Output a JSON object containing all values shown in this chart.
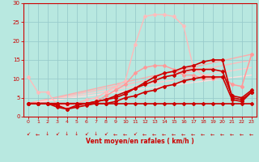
{
  "bg_color": "#b8e8e0",
  "grid_color": "#99cccc",
  "xlabel": "Vent moyen/en rafales ( km/h )",
  "xlabel_color": "#cc0000",
  "tick_color": "#cc0000",
  "arrow_color": "#cc0000",
  "xlim": [
    -0.5,
    23.5
  ],
  "ylim": [
    0,
    30
  ],
  "yticks": [
    0,
    5,
    10,
    15,
    20,
    25,
    30
  ],
  "xticks": [
    0,
    1,
    2,
    3,
    4,
    5,
    6,
    7,
    8,
    9,
    10,
    11,
    12,
    13,
    14,
    15,
    16,
    17,
    18,
    19,
    20,
    21,
    22,
    23
  ],
  "series": [
    {
      "comment": "light pink - high peaked line going up to 27",
      "x": [
        0,
        1,
        2,
        3,
        4,
        5,
        6,
        7,
        8,
        9,
        10,
        11,
        12,
        13,
        14,
        15,
        16,
        17,
        18,
        19,
        20,
        21,
        22,
        23
      ],
      "y": [
        10.5,
        6.5,
        6.5,
        3.0,
        3.0,
        3.5,
        4.5,
        5.0,
        6.5,
        8.0,
        9.5,
        19.0,
        26.5,
        27.0,
        27.0,
        26.5,
        24.0,
        13.0,
        11.0,
        10.5,
        10.5,
        8.5,
        8.0,
        16.5
      ],
      "color": "#ffbbbb",
      "lw": 1.0,
      "marker": "D",
      "ms": 2.0,
      "zorder": 2
    },
    {
      "comment": "medium pink line",
      "x": [
        0,
        1,
        2,
        3,
        4,
        5,
        6,
        7,
        8,
        9,
        10,
        11,
        12,
        13,
        14,
        15,
        16,
        17,
        18,
        19,
        20,
        21,
        22,
        23
      ],
      "y": [
        3.5,
        3.5,
        3.5,
        3.0,
        2.0,
        3.0,
        3.5,
        4.0,
        5.5,
        7.0,
        8.5,
        11.5,
        13.0,
        13.5,
        13.5,
        12.5,
        11.0,
        11.0,
        10.0,
        10.0,
        10.5,
        8.5,
        8.0,
        16.5
      ],
      "color": "#ff9999",
      "lw": 1.0,
      "marker": "D",
      "ms": 2.0,
      "zorder": 2
    },
    {
      "comment": "dark red flat then rising line",
      "x": [
        0,
        1,
        2,
        3,
        4,
        5,
        6,
        7,
        8,
        9,
        10,
        11,
        12,
        13,
        14,
        15,
        16,
        17,
        18,
        19,
        20,
        21,
        22,
        23
      ],
      "y": [
        3.5,
        3.5,
        3.5,
        3.5,
        3.5,
        3.5,
        3.5,
        3.5,
        3.5,
        3.5,
        3.5,
        3.5,
        3.5,
        3.5,
        3.5,
        3.5,
        3.5,
        3.5,
        3.5,
        3.5,
        3.5,
        3.5,
        3.5,
        3.5
      ],
      "color": "#cc0000",
      "lw": 1.2,
      "marker": "D",
      "ms": 2.0,
      "zorder": 4
    },
    {
      "comment": "dark red rising line 1",
      "x": [
        0,
        1,
        2,
        3,
        4,
        5,
        6,
        7,
        8,
        9,
        10,
        11,
        12,
        13,
        14,
        15,
        16,
        17,
        18,
        19,
        20,
        21,
        22,
        23
      ],
      "y": [
        3.5,
        3.5,
        3.5,
        2.5,
        2.0,
        2.5,
        3.0,
        3.5,
        3.5,
        4.0,
        5.0,
        5.5,
        6.5,
        7.0,
        8.0,
        8.5,
        9.5,
        10.0,
        10.5,
        10.5,
        10.5,
        4.5,
        4.0,
        6.5
      ],
      "color": "#cc0000",
      "lw": 1.2,
      "marker": "D",
      "ms": 2.0,
      "zorder": 4
    },
    {
      "comment": "dark red rising line 2",
      "x": [
        0,
        1,
        2,
        3,
        4,
        5,
        6,
        7,
        8,
        9,
        10,
        11,
        12,
        13,
        14,
        15,
        16,
        17,
        18,
        19,
        20,
        21,
        22,
        23
      ],
      "y": [
        3.5,
        3.5,
        3.5,
        3.5,
        3.5,
        3.5,
        3.5,
        4.0,
        4.5,
        5.5,
        6.5,
        7.5,
        8.5,
        9.5,
        10.5,
        11.0,
        12.0,
        12.5,
        12.5,
        12.5,
        12.0,
        5.5,
        5.0,
        7.0
      ],
      "color": "#cc0000",
      "lw": 1.2,
      "marker": "D",
      "ms": 2.0,
      "zorder": 4
    },
    {
      "comment": "dark red medium rise",
      "x": [
        0,
        1,
        2,
        3,
        4,
        5,
        6,
        7,
        8,
        9,
        10,
        11,
        12,
        13,
        14,
        15,
        16,
        17,
        18,
        19,
        20,
        21,
        22,
        23
      ],
      "y": [
        3.5,
        3.5,
        3.5,
        3.0,
        2.0,
        3.0,
        3.5,
        4.0,
        4.5,
        5.0,
        6.0,
        7.5,
        9.0,
        10.5,
        11.5,
        12.0,
        13.0,
        13.5,
        14.5,
        15.0,
        15.0,
        5.0,
        4.5,
        6.5
      ],
      "color": "#cc0000",
      "lw": 1.2,
      "marker": "D",
      "ms": 2.0,
      "zorder": 4
    }
  ],
  "linear_lines": [
    {
      "x0": 0,
      "y0": 3.5,
      "x1": 23,
      "y1": 16.5,
      "color": "#ffaaaa",
      "lw": 1.0
    },
    {
      "x0": 0,
      "y0": 3.5,
      "x1": 23,
      "y1": 15.0,
      "color": "#ffbbbb",
      "lw": 1.0
    },
    {
      "x0": 0,
      "y0": 3.5,
      "x1": 23,
      "y1": 13.0,
      "color": "#ffcccc",
      "lw": 1.0
    },
    {
      "x0": 0,
      "y0": 3.5,
      "x1": 23,
      "y1": 11.0,
      "color": "#ffdddd",
      "lw": 1.0
    }
  ],
  "arrow_chars": [
    "↙",
    "←",
    "↓",
    "↙",
    "↓",
    "↓",
    "↙",
    "↓",
    "↙",
    "←",
    "←",
    "↙",
    "←",
    "←",
    "←",
    "←",
    "←",
    "←",
    "←",
    "←",
    "←",
    "←",
    "←",
    "←"
  ]
}
